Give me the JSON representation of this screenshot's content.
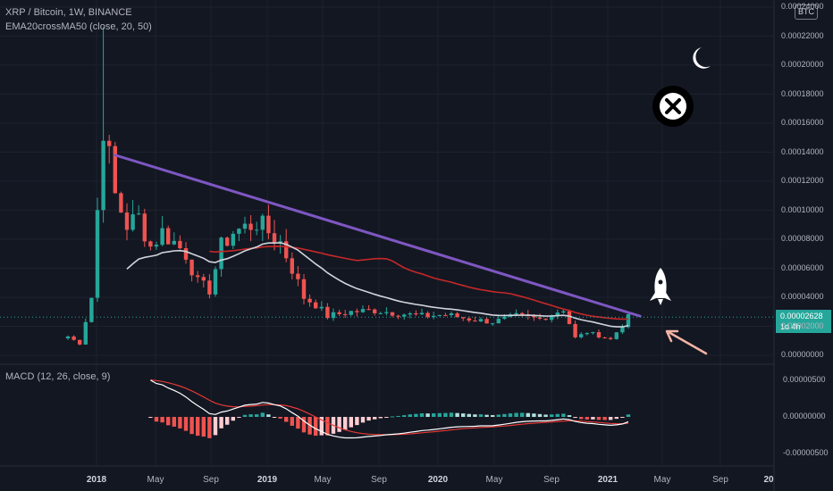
{
  "header": {
    "symbol_line": "XRP / Bitcoin, 1W, BINANCE",
    "indicator_line": "EMA20crossMA50 (close, 20, 50)",
    "macd_line": "MACD (12, 26, close, 9)"
  },
  "currency_badge": "BTC",
  "price_tag": {
    "price": "0.00002628",
    "countdown": "1d 4h"
  },
  "icons": [
    "moon-icon",
    "close-x-icon",
    "rocket-icon",
    "arrow-icon"
  ],
  "colors": {
    "background": "#131722",
    "candle_up": "#26a69a",
    "candle_down": "#ef5350",
    "ema20": "#d1d4dc",
    "ma50": "#c62828",
    "trendline": "#7e57c2",
    "arrow": "#f4b4a4",
    "macd_line": "#ffffff",
    "signal_line": "#e53935"
  },
  "chart_data": {
    "type": "candlestick",
    "price_axis": {
      "ticks": [
        "0.00024000",
        "0.00022000",
        "0.00020000",
        "0.00018000",
        "0.00016000",
        "0.00014000",
        "0.00012000",
        "0.00010000",
        "0.00008000",
        "0.00006000",
        "0.00004000",
        "0.00002000",
        "0.00000000"
      ],
      "range": [
        0,
        0.00024
      ]
    },
    "macd_axis": {
      "ticks": [
        "0.00000500",
        "0.00000000",
        "-0.00000500"
      ],
      "range": [
        -8.5e-06,
        8.5e-06
      ]
    },
    "x_axis": {
      "ticks": [
        {
          "label": "2018",
          "major": true
        },
        {
          "label": "May",
          "major": false
        },
        {
          "label": "Sep",
          "major": false
        },
        {
          "label": "2019",
          "major": true
        },
        {
          "label": "May",
          "major": false
        },
        {
          "label": "Sep",
          "major": false
        },
        {
          "label": "2020",
          "major": true
        },
        {
          "label": "May",
          "major": false
        },
        {
          "label": "Sep",
          "major": false
        },
        {
          "label": "2021",
          "major": true
        },
        {
          "label": "May",
          "major": false
        },
        {
          "label": "Sep",
          "major": false
        },
        {
          "label": "20",
          "major": true
        }
      ]
    },
    "anchors": [
      [
        0,
        1.3e-05
      ],
      [
        2,
        8e-06
      ],
      [
        4,
        4e-05
      ],
      [
        6,
        0.00016
      ],
      [
        8,
        0.00011
      ],
      [
        10,
        9e-05
      ],
      [
        12,
        9.5e-05
      ],
      [
        14,
        7.5e-05
      ],
      [
        16,
        8.5e-05
      ],
      [
        18,
        7.8e-05
      ],
      [
        20,
        7e-05
      ],
      [
        22,
        5e-05
      ],
      [
        24,
        4.5e-05
      ],
      [
        26,
        7.5e-05
      ],
      [
        28,
        8.5e-05
      ],
      [
        30,
        8.8e-05
      ],
      [
        32,
        9.2e-05
      ],
      [
        34,
        8.5e-05
      ],
      [
        36,
        7.8e-05
      ],
      [
        38,
        6e-05
      ],
      [
        40,
        4e-05
      ],
      [
        42,
        3.5e-05
      ],
      [
        44,
        2.7e-05
      ],
      [
        48,
        3e-05
      ],
      [
        52,
        3.1e-05
      ],
      [
        56,
        2.9e-05
      ],
      [
        60,
        2.7e-05
      ],
      [
        64,
        2.8e-05
      ],
      [
        68,
        2.5e-05
      ],
      [
        72,
        2.3e-05
      ],
      [
        76,
        2.7e-05
      ],
      [
        80,
        2.5e-05
      ],
      [
        84,
        3.2e-05
      ],
      [
        86,
        1.2e-05
      ],
      [
        88,
        1.6e-05
      ],
      [
        92,
        1.1e-05
      ],
      [
        95,
        2.6e-05
      ]
    ],
    "trendline": {
      "from": [
        8,
        0.000138
      ],
      "to": [
        97,
        2.7e-05
      ]
    },
    "current_price": 2.628e-05
  }
}
